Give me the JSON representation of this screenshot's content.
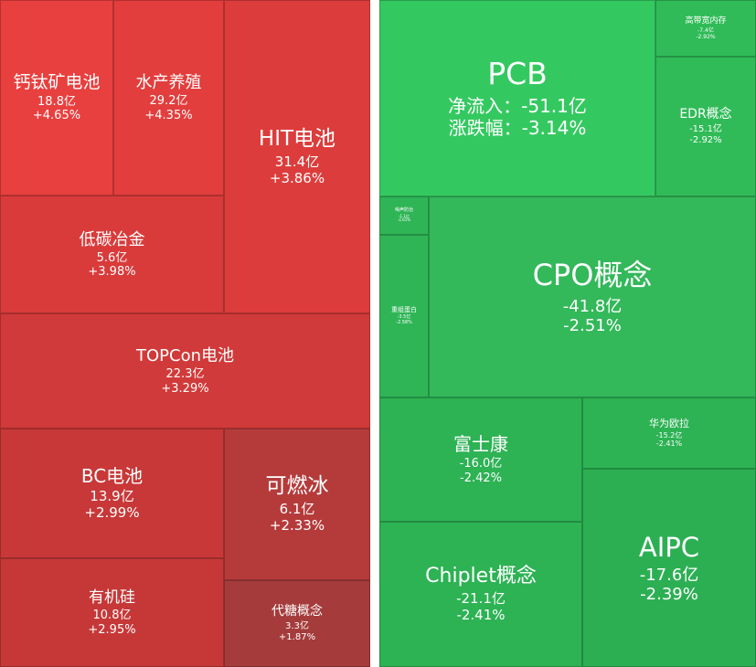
{
  "chart_data": [
    {
      "type": "treemap",
      "side": "inflow",
      "cells": [
        {
          "name": "钙钛矿电池",
          "flow": "18.8亿",
          "change": "+4.65%",
          "color": "#e8403f"
        },
        {
          "name": "水产养殖",
          "flow": "29.2亿",
          "change": "+4.35%",
          "color": "#e23e3d"
        },
        {
          "name": "HIT电池",
          "flow": "31.4亿",
          "change": "+3.86%",
          "color": "#dc3d3c"
        },
        {
          "name": "低碳冶金",
          "flow": "5.6亿",
          "change": "+3.98%",
          "color": "#d93b3b"
        },
        {
          "name": "TOPCon电池",
          "flow": "22.3亿",
          "change": "+3.29%",
          "color": "#d13a3a"
        },
        {
          "name": "BC电池",
          "flow": "13.9亿",
          "change": "+2.99%",
          "color": "#c83838"
        },
        {
          "name": "可燃冰",
          "flow": "6.1亿",
          "change": "+2.33%",
          "color": "#b53b3b"
        },
        {
          "name": "有机硅",
          "flow": "10.8亿",
          "change": "+2.95%",
          "color": "#c63838"
        },
        {
          "name": "代糖概念",
          "flow": "3.3亿",
          "change": "+1.87%",
          "color": "#a53b3b"
        }
      ]
    },
    {
      "type": "treemap",
      "side": "outflow",
      "cells": [
        {
          "name": "PCB",
          "flow_label": "净流入：",
          "flow": "-51.1亿",
          "change_label": "涨跌幅：",
          "change": "-3.14%",
          "color": "#34c960"
        },
        {
          "name": "高带宽内存",
          "flow": "-7.4亿",
          "change": "-2.92%",
          "color": "#30bb58"
        },
        {
          "name": "EDR概念",
          "flow": "-15.1亿",
          "change": "-2.92%",
          "color": "#30bb58"
        },
        {
          "name": "噪声防治",
          "flow": "-1.1亿",
          "change": "-2.61%",
          "color": "#2fb556"
        },
        {
          "name": "CPO概念",
          "flow": "-41.8亿",
          "change": "-2.51%",
          "color": "#33b85a"
        },
        {
          "name": "重组蛋白",
          "flow": "-3.5亿",
          "change": "-2.58%",
          "color": "#2fb556"
        },
        {
          "name": "富士康",
          "flow": "-16.0亿",
          "change": "-2.42%",
          "color": "#2db254"
        },
        {
          "name": "华为欧拉",
          "flow": "-15.2亿",
          "change": "-2.41%",
          "color": "#2db254"
        },
        {
          "name": "Chiplet概念",
          "flow": "-21.1亿",
          "change": "-2.41%",
          "color": "#2db254"
        },
        {
          "name": "AIPC",
          "flow": "-17.6亿",
          "change": "-2.39%",
          "color": "#2caf53"
        }
      ]
    }
  ]
}
